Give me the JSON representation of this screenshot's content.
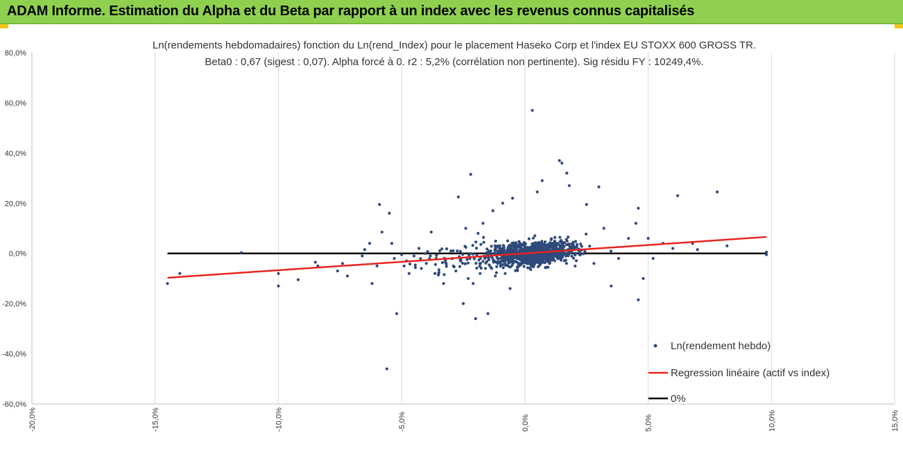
{
  "header": {
    "title": "ADAM Informe. Estimation du Alpha et du Beta par rapport à un index avec les revenus connus capitalisés"
  },
  "chart_data": {
    "type": "scatter",
    "title": "Ln(rendements hebdomadaires) fonction du Ln(rend_Index) pour le placement Haseko Corp et l'index EU STOXX 600 GROSS TR.",
    "subtitle": "Beta0 : 0,67 (sigest : 0,07). Alpha forcé à 0. r2 : 5,2% (corrélation non pertinente). Sig résidu FY : 10249,4%.",
    "xlim": [
      -20,
      15
    ],
    "ylim": [
      -60,
      80
    ],
    "x_ticks": [
      "-20,0%",
      "-15,0%",
      "-10,0%",
      "-5,0%",
      "0,0%",
      "5,0%",
      "10,0%",
      "15,0%"
    ],
    "y_ticks": [
      "80,0%",
      "60,0%",
      "40,0%",
      "20,0%",
      "0,0%",
      "-20,0%",
      "-40,0%",
      "-60,0%"
    ],
    "grid": "vertical",
    "legend_position": "bottom-right",
    "colors": {
      "points": "#2e4a7a",
      "regression": "#e8231d",
      "zero": "#000000",
      "grid": "#d9d9d9",
      "banner": "#8fd14f"
    },
    "series": [
      {
        "name": "Ln(rendement hebdo)",
        "kind": "scatter",
        "points": [
          [
            -14.5,
            -12
          ],
          [
            -14.0,
            -8
          ],
          [
            -11.5,
            0.3
          ],
          [
            -10.0,
            -13
          ],
          [
            -10.0,
            -8
          ],
          [
            -9.2,
            -10.5
          ],
          [
            -8.5,
            -3.5
          ],
          [
            -8.4,
            -5
          ],
          [
            -7.6,
            -7
          ],
          [
            -7.4,
            -4
          ],
          [
            -7.2,
            -9
          ],
          [
            -6.6,
            -1
          ],
          [
            -6.5,
            1.5
          ],
          [
            -6.3,
            4
          ],
          [
            -6.2,
            -12
          ],
          [
            -6.0,
            -5
          ],
          [
            -5.9,
            19.5
          ],
          [
            -5.8,
            8.5
          ],
          [
            -5.5,
            16
          ],
          [
            -5.4,
            4
          ],
          [
            -5.2,
            -24
          ],
          [
            -5.6,
            -46
          ],
          [
            -5.3,
            -2
          ],
          [
            -5.0,
            -0.5
          ],
          [
            -4.9,
            -5
          ],
          [
            -4.8,
            -3
          ],
          [
            -4.7,
            -8
          ],
          [
            -4.5,
            -1
          ],
          [
            -4.3,
            2
          ],
          [
            -4.2,
            -6
          ],
          [
            -4.0,
            -4
          ],
          [
            -3.8,
            8.5
          ],
          [
            -3.6,
            -2
          ],
          [
            -3.5,
            -8
          ],
          [
            -3.3,
            -12
          ],
          [
            -3.2,
            -4
          ],
          [
            -3.0,
            1
          ],
          [
            -2.9,
            -5
          ],
          [
            -2.8,
            -7
          ],
          [
            -2.7,
            22.5
          ],
          [
            -2.6,
            -3
          ],
          [
            -2.5,
            -20
          ],
          [
            -2.4,
            10
          ],
          [
            -2.3,
            -10
          ],
          [
            -2.2,
            31.5
          ],
          [
            -2.1,
            -12
          ],
          [
            -2.0,
            -26
          ],
          [
            -1.9,
            8
          ],
          [
            -1.8,
            -4
          ],
          [
            -1.7,
            12
          ],
          [
            -1.6,
            -6
          ],
          [
            -1.5,
            -24
          ],
          [
            -1.4,
            -1
          ],
          [
            -1.3,
            17
          ],
          [
            -1.2,
            -9
          ],
          [
            -1.1,
            3
          ],
          [
            -1.0,
            -2
          ],
          [
            -0.9,
            20
          ],
          [
            -0.8,
            -8
          ],
          [
            -0.7,
            5
          ],
          [
            -0.6,
            -14
          ],
          [
            -0.5,
            22
          ],
          [
            0.3,
            57
          ],
          [
            0.5,
            24.5
          ],
          [
            0.7,
            29
          ],
          [
            1.0,
            -3
          ],
          [
            1.4,
            37
          ],
          [
            1.5,
            36
          ],
          [
            1.7,
            32
          ],
          [
            1.8,
            27
          ],
          [
            2.5,
            19.5
          ],
          [
            2.8,
            -4
          ],
          [
            3.0,
            26.5
          ],
          [
            3.2,
            10
          ],
          [
            3.5,
            -13
          ],
          [
            3.8,
            -2
          ],
          [
            4.2,
            6
          ],
          [
            4.5,
            12
          ],
          [
            4.6,
            18
          ],
          [
            4.6,
            -18.5
          ],
          [
            4.8,
            -10
          ],
          [
            5.0,
            6
          ],
          [
            5.2,
            -2
          ],
          [
            5.6,
            4
          ],
          [
            6.0,
            2
          ],
          [
            6.2,
            23
          ],
          [
            6.8,
            4
          ],
          [
            7.0,
            1.5
          ],
          [
            7.8,
            24.5
          ],
          [
            8.2,
            3
          ],
          [
            9.8,
            0.5
          ],
          [
            9.8,
            -0.5
          ]
        ]
      },
      {
        "name": "Regression linéaire (actif vs index)",
        "kind": "line",
        "slope": 0.67,
        "x_range": [
          -14.5,
          9.8
        ]
      },
      {
        "name": "0%",
        "kind": "line",
        "y": 0,
        "x_range": [
          -14.5,
          9.8
        ]
      }
    ]
  }
}
